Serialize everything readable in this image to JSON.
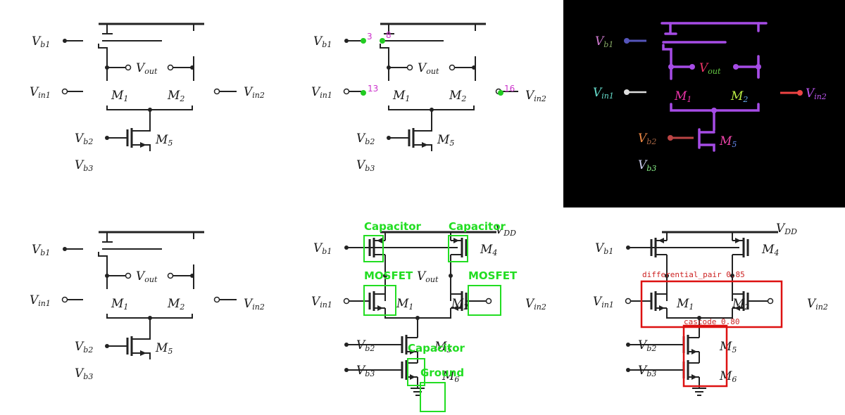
{
  "labels": {
    "vb1": "V",
    "vb1_sub": "b1",
    "vout": "V",
    "vout_sub": "out",
    "vin1": "V",
    "vin1_sub": "in1",
    "vin2": "V",
    "vin2_sub": "in2",
    "vb2": "V",
    "vb2_sub": "b2",
    "vb3": "V",
    "vb3_sub": "b3",
    "vdd": "V",
    "vdd_sub": "DD",
    "m1": "M",
    "m1_sub": "1",
    "m2": "M",
    "m2_sub": "2",
    "m4": "M",
    "m4_sub": "4",
    "m5": "M",
    "m5_sub": "5",
    "m6": "M",
    "m6_sub": "6"
  },
  "pin_numbers": [
    "3",
    "8",
    "13",
    "16"
  ],
  "detections": [
    {
      "label": "Capacitor"
    },
    {
      "label": "Capacitor"
    },
    {
      "label": "MOSFET"
    },
    {
      "label": "MOSFET"
    },
    {
      "label": "Capacitor"
    },
    {
      "label": "Ground"
    }
  ],
  "subcircuits": [
    {
      "label": "differential_pair 0.85"
    },
    {
      "label": "cascode 0.80"
    }
  ],
  "colors": {
    "panel_bg": "#000000",
    "wire_purple": "#a64ce6",
    "detection_green": "#22dd22",
    "subcircuit_red": "#dd1111",
    "pin_magenta": "#cc33cc"
  }
}
